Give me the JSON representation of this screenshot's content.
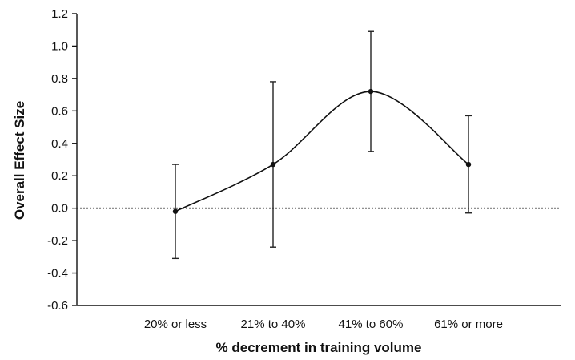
{
  "chart_data": {
    "type": "line",
    "title": "",
    "xlabel": "% decrement in training volume",
    "ylabel": "Overall Effect Size",
    "categories": [
      "20% or less",
      "21% to 40%",
      "41% to 60%",
      "61% or more"
    ],
    "series": [
      {
        "values": [
          -0.02,
          0.27,
          0.72,
          0.27
        ],
        "lower": [
          -0.31,
          -0.24,
          0.35,
          -0.03
        ],
        "upper": [
          0.27,
          0.78,
          1.09,
          0.57
        ]
      }
    ],
    "ylim": [
      -0.6,
      1.2
    ],
    "yticks": [
      "-0.6",
      "-0.4",
      "-0.2",
      "0.0",
      "0.2",
      "0.4",
      "0.6",
      "0.8",
      "1.0",
      "1.2"
    ],
    "reference_line": 0.0,
    "grid": false,
    "legend": "none",
    "colors": {
      "line": "#111111",
      "reference": "#222222"
    }
  }
}
